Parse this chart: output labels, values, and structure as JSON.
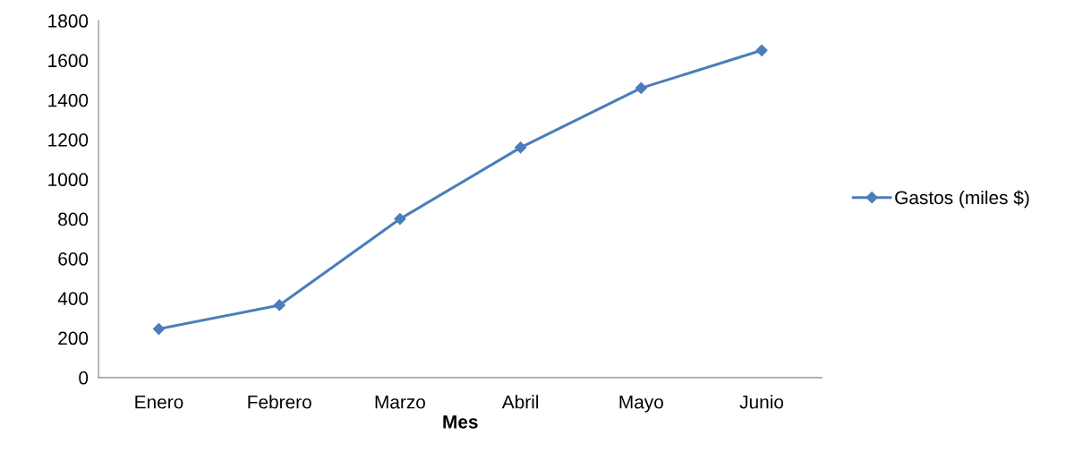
{
  "chart_data": {
    "type": "line",
    "xlabel": "Mes",
    "categories": [
      "Enero",
      "Febrero",
      "Marzo",
      "Abril",
      "Mayo",
      "Junio"
    ],
    "series": [
      {
        "name": "Gastos (miles $)",
        "color": "#4a7ebb",
        "values": [
          245,
          365,
          800,
          1160,
          1460,
          1650
        ]
      }
    ],
    "ylim": [
      0,
      1800
    ],
    "yticks": [
      0,
      200,
      400,
      600,
      800,
      1000,
      1200,
      1400,
      1600,
      1800
    ],
    "marker": "diamond",
    "line_style": "solid",
    "legend": "right",
    "grid": false
  }
}
